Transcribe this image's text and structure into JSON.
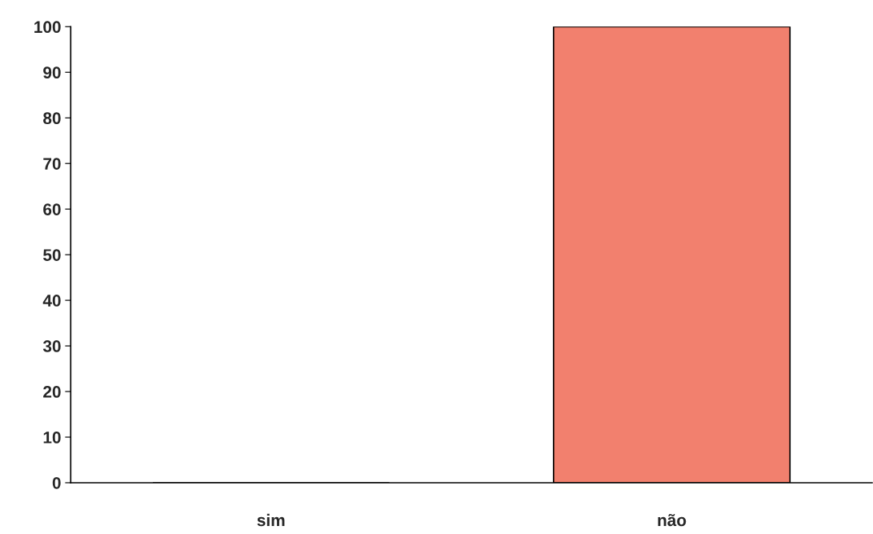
{
  "chart_data": {
    "type": "bar",
    "categories": [
      "sim",
      "não"
    ],
    "values": [
      0,
      100
    ],
    "color": "#f2806e",
    "ylim": [
      0,
      100
    ],
    "yticks": [
      0,
      10,
      20,
      30,
      40,
      50,
      60,
      70,
      80,
      90,
      100
    ],
    "grid": false,
    "legend": false
  }
}
